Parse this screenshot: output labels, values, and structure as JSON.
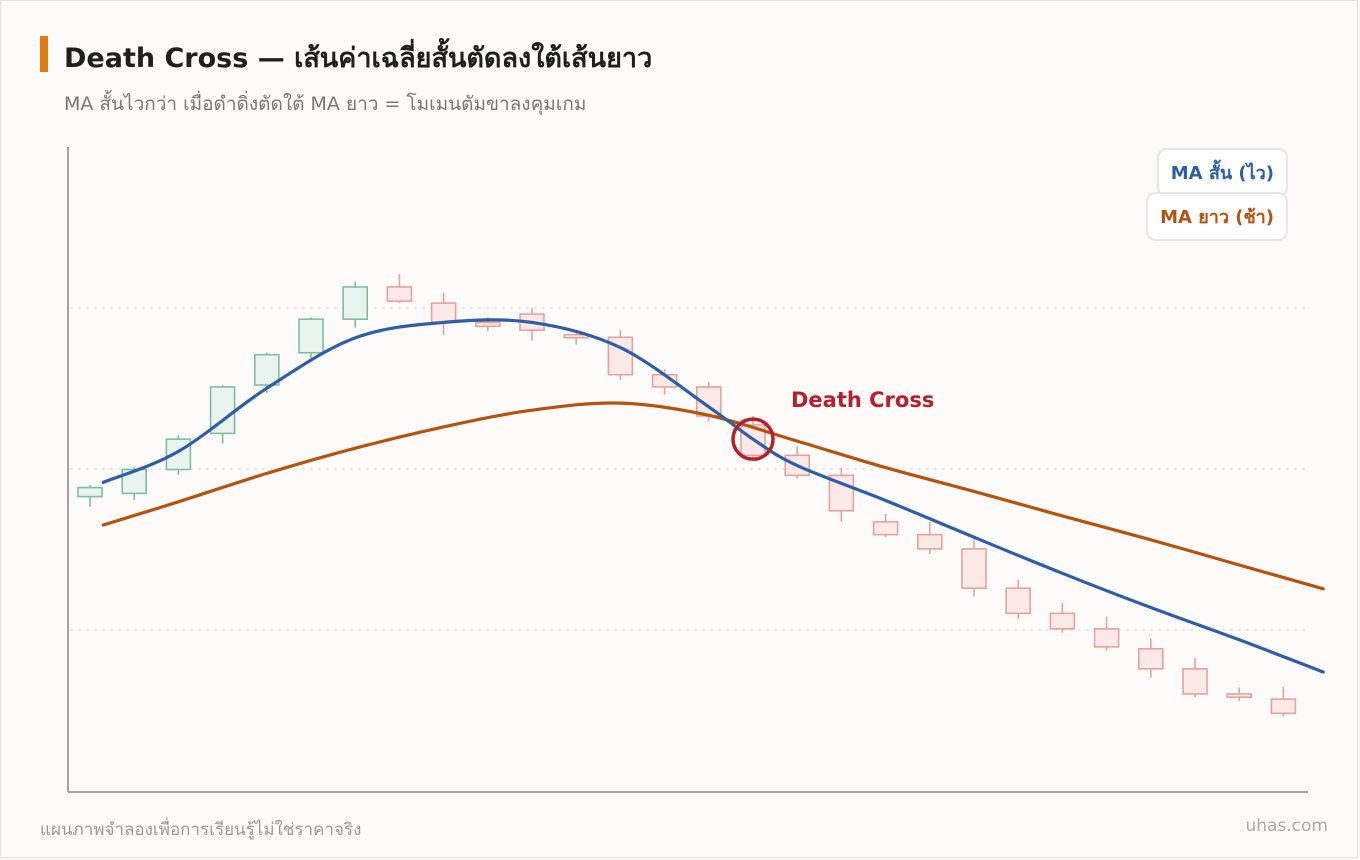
{
  "page": {
    "title": "Death Cross — เส้นค่าเฉลี่ยสั้นตัดลงใต้เส้นยาว",
    "subtitle": "MA สั้นไวกว่า เมื่อดำดิ่งตัดใต้ MA ยาว = โมเมนตัมขาลงคุมเกม",
    "footer_note": "แผนภาพจำลองเพื่อการเรียนรู้ไม่ใช่ราคาจริง",
    "brand": "uhas.com"
  },
  "chart_data": {
    "type": "candlestick",
    "title": "Death Cross — เส้นค่าเฉลี่ยสั้นตัดลงใต้เส้นยาว",
    "xlabel": "",
    "ylabel": "",
    "ylim": [
      0,
      100
    ],
    "grid": "horizontal dotted",
    "legend_position": "top-right",
    "colors": {
      "accent": "#e07b12",
      "up_candle": "#7fbf9f",
      "down_candle": "#e4a49c",
      "short_ma": "#2f5ea8",
      "long_ma": "#b5530e",
      "cross_marker": "#b5202a"
    },
    "candles": [
      {
        "open": 45.8,
        "high": 47.6,
        "low": 44.2,
        "close": 47.2
      },
      {
        "open": 46.3,
        "high": 50.4,
        "low": 45.3,
        "close": 50.0
      },
      {
        "open": 50.0,
        "high": 55.3,
        "low": 49.2,
        "close": 54.7
      },
      {
        "open": 55.6,
        "high": 63.1,
        "low": 54.0,
        "close": 62.8
      },
      {
        "open": 63.1,
        "high": 68.1,
        "low": 61.9,
        "close": 67.8
      },
      {
        "open": 68.1,
        "high": 73.6,
        "low": 66.9,
        "close": 73.3
      },
      {
        "open": 73.3,
        "high": 79.1,
        "low": 72.0,
        "close": 78.3
      },
      {
        "open": 78.3,
        "high": 80.3,
        "low": 75.8,
        "close": 76.1
      },
      {
        "open": 75.8,
        "high": 77.4,
        "low": 70.9,
        "close": 72.8
      },
      {
        "open": 72.8,
        "high": 73.6,
        "low": 71.4,
        "close": 72.2
      },
      {
        "open": 74.1,
        "high": 75.0,
        "low": 70.0,
        "close": 71.6
      },
      {
        "open": 70.9,
        "high": 71.6,
        "low": 69.4,
        "close": 70.5
      },
      {
        "open": 70.5,
        "high": 71.6,
        "low": 63.9,
        "close": 64.7
      },
      {
        "open": 64.7,
        "high": 65.6,
        "low": 61.6,
        "close": 62.8
      },
      {
        "open": 62.8,
        "high": 63.6,
        "low": 57.5,
        "close": 58.3
      },
      {
        "open": 56.9,
        "high": 58.3,
        "low": 51.6,
        "close": 52.2
      },
      {
        "open": 52.2,
        "high": 53.6,
        "low": 48.6,
        "close": 49.1
      },
      {
        "open": 49.1,
        "high": 50.3,
        "low": 41.9,
        "close": 43.6
      },
      {
        "open": 41.9,
        "high": 43.1,
        "low": 39.5,
        "close": 39.9
      },
      {
        "open": 39.9,
        "high": 41.9,
        "low": 36.9,
        "close": 37.7
      },
      {
        "open": 37.7,
        "high": 39.5,
        "low": 30.3,
        "close": 31.6
      },
      {
        "open": 31.6,
        "high": 32.9,
        "low": 26.9,
        "close": 27.7
      },
      {
        "open": 27.7,
        "high": 29.3,
        "low": 24.7,
        "close": 25.3
      },
      {
        "open": 25.3,
        "high": 27.2,
        "low": 21.9,
        "close": 22.5
      },
      {
        "open": 22.2,
        "high": 23.8,
        "low": 17.7,
        "close": 19.1
      },
      {
        "open": 19.1,
        "high": 20.8,
        "low": 14.7,
        "close": 15.2
      },
      {
        "open": 15.2,
        "high": 16.2,
        "low": 14.1,
        "close": 14.7
      },
      {
        "open": 14.4,
        "high": 16.3,
        "low": 11.7,
        "close": 12.2
      }
    ],
    "series": [
      {
        "name": "MA สั้น (ไว)",
        "color": "#2f5ea8",
        "points": [
          [
            0.3,
            48.0
          ],
          [
            2,
            52.8
          ],
          [
            4,
            62.6
          ],
          [
            6,
            70.4
          ],
          [
            8,
            72.8
          ],
          [
            10,
            72.8
          ],
          [
            12,
            68.9
          ],
          [
            14,
            59.7
          ],
          [
            15,
            54.7
          ],
          [
            16,
            50.6
          ],
          [
            18,
            45.2
          ],
          [
            20,
            39.5
          ],
          [
            22,
            33.9
          ],
          [
            24,
            28.6
          ],
          [
            26,
            23.6
          ],
          [
            27.9,
            18.6
          ]
        ]
      },
      {
        "name": "MA ยาว (ช้า)",
        "color": "#b5530e",
        "points": [
          [
            0.3,
            41.4
          ],
          [
            2,
            45.0
          ],
          [
            4,
            49.4
          ],
          [
            6,
            53.3
          ],
          [
            8,
            56.6
          ],
          [
            10,
            59.2
          ],
          [
            12,
            60.3
          ],
          [
            14,
            58.4
          ],
          [
            16,
            54.4
          ],
          [
            18,
            50.3
          ],
          [
            20,
            46.6
          ],
          [
            22,
            42.8
          ],
          [
            24,
            39.1
          ],
          [
            26,
            35.2
          ],
          [
            27.9,
            31.5
          ]
        ]
      }
    ],
    "annotations": [
      {
        "label": "Death Cross",
        "x": 15.0,
        "y": 54.7
      }
    ]
  }
}
